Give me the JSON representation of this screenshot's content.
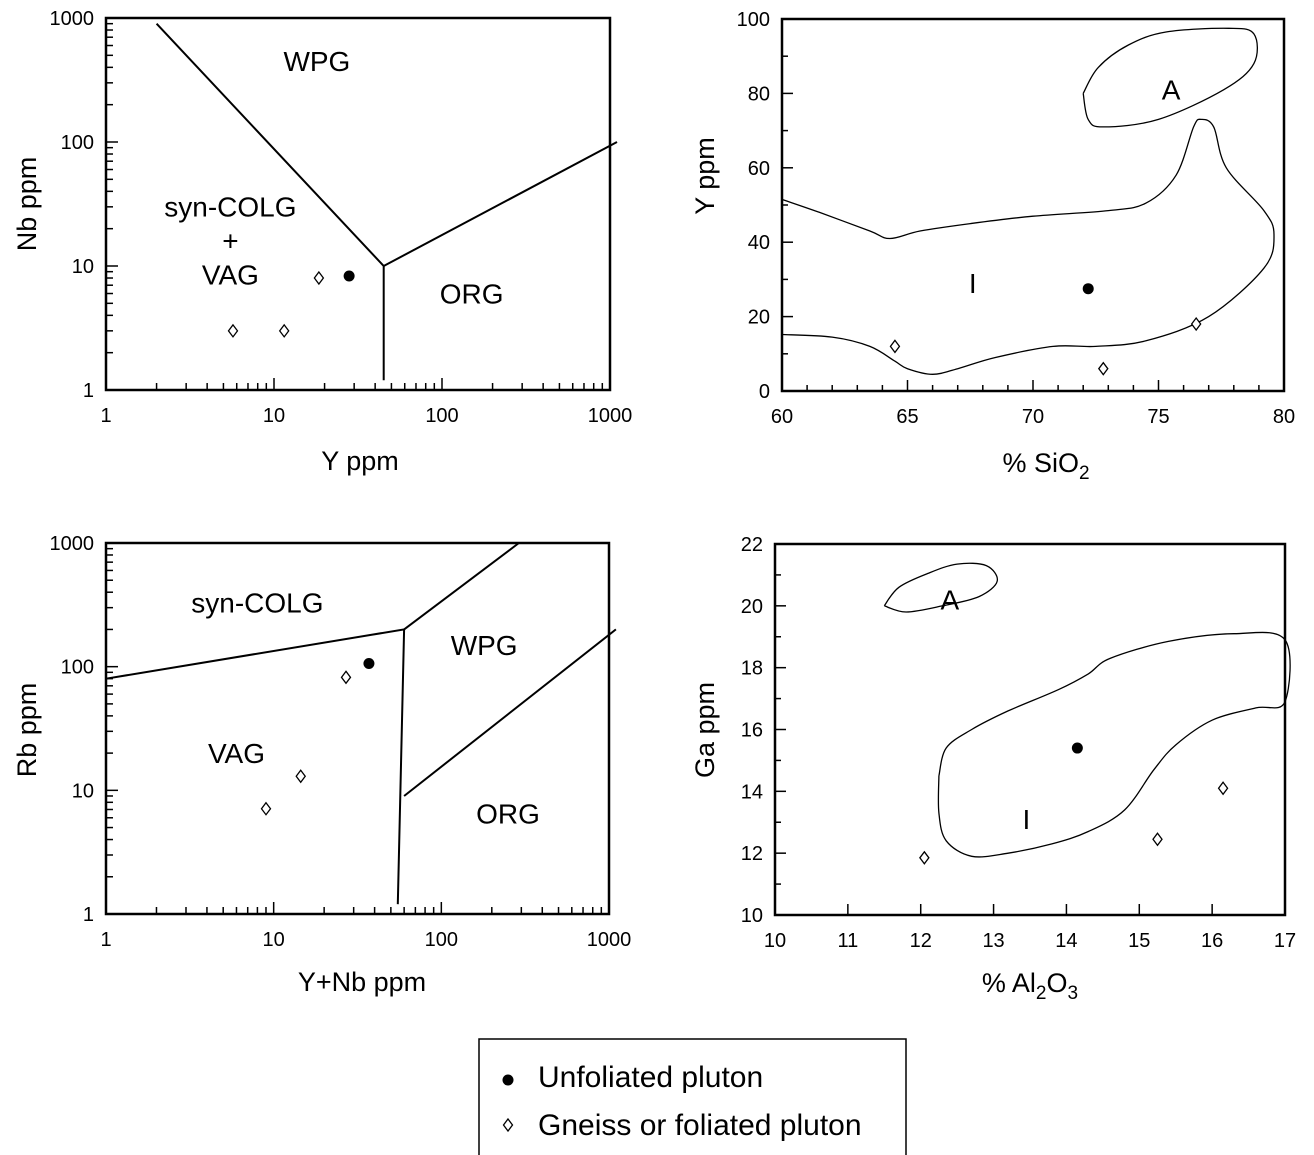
{
  "chart_data": [
    {
      "id": "nb-y",
      "type": "scatter",
      "xscale": "log",
      "yscale": "log",
      "xlim": [
        1,
        1000
      ],
      "ylim": [
        1,
        1000
      ],
      "xlabel": "Y  ppm",
      "ylabel": "Nb ppm",
      "xticks": [
        "1",
        "10",
        "100",
        "1000"
      ],
      "yticks": [
        "1",
        "10",
        "100",
        "1000"
      ],
      "boundaries": [
        [
          [
            2,
            900
          ],
          [
            45,
            10
          ],
          [
            45,
            1.2
          ]
        ],
        [
          [
            45,
            10
          ],
          [
            1100,
            100
          ]
        ]
      ],
      "regions": [
        {
          "lines": [
            "WPG"
          ],
          "at": [
            18,
            450
          ]
        },
        {
          "lines": [
            "syn-COLG",
            "+",
            "VAG"
          ],
          "at": [
            5.5,
            16
          ]
        },
        {
          "lines": [
            "ORG"
          ],
          "at": [
            150,
            6
          ]
        }
      ],
      "series": [
        {
          "key": "unfoliated",
          "points": [
            [
              28,
              8.3
            ]
          ]
        },
        {
          "key": "gneiss",
          "points": [
            [
              18.5,
              8
            ],
            [
              5.7,
              3
            ],
            [
              11.5,
              3
            ]
          ]
        }
      ]
    },
    {
      "id": "y-sio2",
      "type": "scatter",
      "xscale": "linear",
      "yscale": "linear",
      "xlim": [
        60,
        80
      ],
      "ylim": [
        0,
        100
      ],
      "xlabel_main": "% SiO",
      "xlabel_sub": "2",
      "ylabel": "Y  ppm",
      "xticks": [
        "60",
        "65",
        "70",
        "75",
        "80"
      ],
      "yticks": [
        "0",
        "20",
        "40",
        "60",
        "80",
        "100"
      ],
      "fields": [
        {
          "label": "A",
          "at": [
            75.5,
            81
          ],
          "outline": [
            [
              72,
              80
            ],
            [
              72.6,
              87
            ],
            [
              73.8,
              93
            ],
            [
              75.3,
              96.5
            ],
            [
              77.8,
              97.5
            ],
            [
              78.8,
              96
            ],
            [
              78.8,
              88
            ],
            [
              77.6,
              81
            ],
            [
              75,
              73
            ],
            [
              72.8,
              71
            ],
            [
              72.2,
              73
            ],
            [
              72,
              80
            ]
          ]
        },
        {
          "label": "I",
          "at": [
            67.6,
            29
          ],
          "outline": [
            [
              60,
              51.5
            ],
            [
              61.5,
              48
            ],
            [
              63.5,
              43
            ],
            [
              64.3,
              41
            ],
            [
              65.5,
              43
            ],
            [
              67.5,
              45
            ],
            [
              70,
              47
            ],
            [
              73,
              48.5
            ],
            [
              74.5,
              50.5
            ],
            [
              75.7,
              58
            ],
            [
              76.4,
              71
            ],
            [
              76.7,
              73
            ],
            [
              77.2,
              71
            ],
            [
              77.7,
              60
            ],
            [
              79.2,
              48.5
            ],
            [
              79.6,
              42
            ],
            [
              79.2,
              33
            ],
            [
              77,
              20
            ],
            [
              74.5,
              13.5
            ],
            [
              72.5,
              12
            ],
            [
              70.8,
              12
            ],
            [
              68.5,
              9
            ],
            [
              67,
              6
            ],
            [
              66,
              4.5
            ],
            [
              65,
              6
            ],
            [
              64.5,
              8
            ],
            [
              63.5,
              12
            ],
            [
              62,
              14.5
            ],
            [
              60,
              15.2
            ]
          ]
        }
      ],
      "series": [
        {
          "key": "unfoliated",
          "points": [
            [
              72.2,
              27.5
            ]
          ]
        },
        {
          "key": "gneiss",
          "points": [
            [
              64.5,
              12
            ],
            [
              72.8,
              6
            ],
            [
              76.5,
              18
            ]
          ]
        }
      ]
    },
    {
      "id": "rb-ynb",
      "type": "scatter",
      "xscale": "log",
      "yscale": "log",
      "xlim": [
        1,
        1000
      ],
      "ylim": [
        1,
        1000
      ],
      "xlabel": "Y+Nb ppm",
      "ylabel": "Rb ppm",
      "xticks": [
        "1",
        "10",
        "100",
        "1000"
      ],
      "yticks": [
        "1",
        "10",
        "100",
        "1000"
      ],
      "boundaries": [
        [
          [
            1,
            80
          ],
          [
            60,
            200
          ],
          [
            55,
            1.2
          ]
        ],
        [
          [
            60,
            200
          ],
          [
            290,
            1000
          ]
        ],
        [
          [
            60,
            9
          ],
          [
            1100,
            200
          ]
        ]
      ],
      "regions": [
        {
          "lines": [
            "syn-COLG"
          ],
          "at": [
            8,
            330
          ]
        },
        {
          "lines": [
            "WPG"
          ],
          "at": [
            180,
            150
          ]
        },
        {
          "lines": [
            "VAG"
          ],
          "at": [
            6,
            20
          ]
        },
        {
          "lines": [
            "ORG"
          ],
          "at": [
            250,
            6.5
          ]
        }
      ],
      "series": [
        {
          "key": "unfoliated",
          "points": [
            [
              37,
              106
            ]
          ]
        },
        {
          "key": "gneiss",
          "points": [
            [
              27,
              82
            ],
            [
              14.5,
              13
            ],
            [
              9,
              7.1
            ]
          ]
        }
      ]
    },
    {
      "id": "ga-al2o3",
      "type": "scatter",
      "xscale": "linear",
      "yscale": "linear",
      "xlim": [
        10,
        17
      ],
      "ylim": [
        10,
        22
      ],
      "xlabel_main": "% Al",
      "xlabel_sub1": "2",
      "xlabel_mid": "O",
      "xlabel_sub2": "3",
      "ylabel": "Ga ppm",
      "xticks": [
        "10",
        "11",
        "12",
        "13",
        "14",
        "15",
        "16",
        "17"
      ],
      "yticks": [
        "10",
        "12",
        "14",
        "16",
        "18",
        "20",
        "22"
      ],
      "fields": [
        {
          "label": "A",
          "at": [
            12.4,
            20.2
          ],
          "outline": [
            [
              11.5,
              20
            ],
            [
              11.7,
              20.6
            ],
            [
              12.1,
              21.05
            ],
            [
              12.5,
              21.35
            ],
            [
              12.9,
              21.3
            ],
            [
              13.05,
              20.8
            ],
            [
              12.8,
              20.3
            ],
            [
              12.3,
              20
            ],
            [
              11.8,
              19.8
            ],
            [
              11.5,
              20
            ]
          ]
        },
        {
          "label": "I",
          "at": [
            13.45,
            13.1
          ],
          "outline": [
            [
              12.25,
              14.5
            ],
            [
              12.35,
              15.4
            ],
            [
              12.7,
              16
            ],
            [
              13.2,
              16.6
            ],
            [
              13.9,
              17.3
            ],
            [
              14.3,
              17.8
            ],
            [
              14.6,
              18.3
            ],
            [
              15.4,
              18.85
            ],
            [
              16.3,
              19.1
            ],
            [
              17,
              18.9
            ],
            [
              17,
              16.9
            ],
            [
              16.6,
              16.7
            ],
            [
              16,
              16.3
            ],
            [
              15.5,
              15.5
            ],
            [
              15.2,
              14.7
            ],
            [
              14.8,
              13.4
            ],
            [
              14.3,
              12.7
            ],
            [
              13.8,
              12.3
            ],
            [
              13.2,
              12
            ],
            [
              12.7,
              11.9
            ],
            [
              12.35,
              12.4
            ],
            [
              12.25,
              13.3
            ],
            [
              12.25,
              14.5
            ]
          ]
        }
      ],
      "series": [
        {
          "key": "unfoliated",
          "points": [
            [
              14.15,
              15.4
            ]
          ]
        },
        {
          "key": "gneiss",
          "points": [
            [
              12.05,
              11.85
            ],
            [
              15.25,
              12.45
            ],
            [
              16.15,
              14.1
            ]
          ]
        }
      ]
    }
  ],
  "legend": {
    "items": [
      {
        "key": "unfoliated",
        "label": "Unfoliated pluton"
      },
      {
        "key": "gneiss",
        "label": "Gneiss or foliated pluton"
      }
    ]
  }
}
